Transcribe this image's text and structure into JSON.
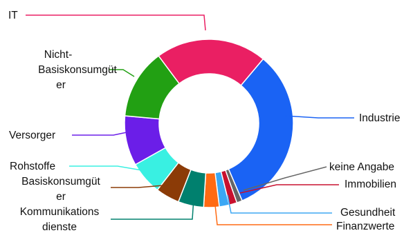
{
  "chart_data": {
    "type": "pie",
    "title": "",
    "donut": true,
    "legend": "none",
    "slices": [
      {
        "label": "Industrie",
        "value": 30.5,
        "color": "#1a63f4"
      },
      {
        "label": "keine Angabe",
        "value": 1.0,
        "color": "#666666"
      },
      {
        "label": "Immobilien",
        "value": 1.4,
        "color": "#c8102e"
      },
      {
        "label": "Gesundheit",
        "value": 1.8,
        "color": "#3ba7f4"
      },
      {
        "label": "Finanzwerte",
        "value": 2.8,
        "color": "#ff6a13"
      },
      {
        "label": "Kommunikations dienste",
        "value": 4.6,
        "color": "#00806e"
      },
      {
        "label": "Basiskonsumgüt er",
        "value": 4.3,
        "color": "#8b3b07"
      },
      {
        "label": "Rohstoffe",
        "value": 6.0,
        "color": "#39f0e2"
      },
      {
        "label": "Versorger",
        "value": 9.0,
        "color": "#6b1ee8"
      },
      {
        "label": "Nicht-Basiskonsumgüt er",
        "value": 12.6,
        "color": "#22a013"
      },
      {
        "label": "IT",
        "value": 20.0,
        "color": "#ea1f63"
      }
    ]
  }
}
